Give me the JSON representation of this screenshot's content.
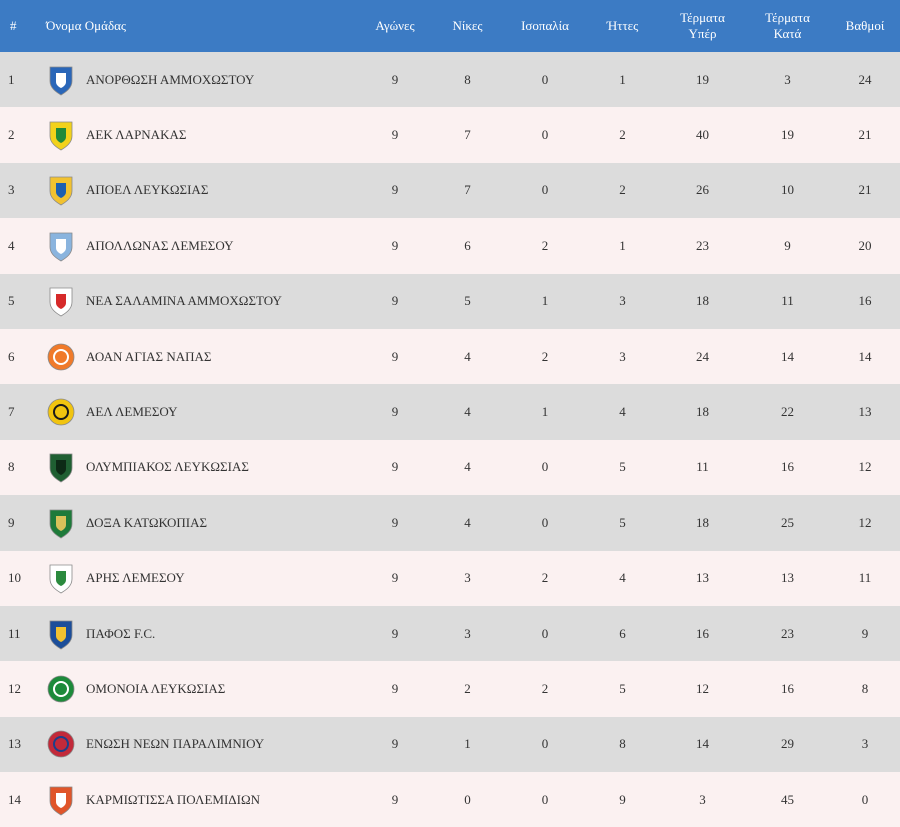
{
  "headers": {
    "num": "#",
    "team": "Όνομα Ομάδας",
    "played": "Αγώνες",
    "wins": "Νίκες",
    "draws": "Ισοπαλία",
    "losses": "Ήττες",
    "gf_line1": "Τέρματα",
    "gf_line2": "Υπέρ",
    "ga_line1": "Τέρματα",
    "ga_line2": "Κατά",
    "points": "Βαθμοί"
  },
  "rows": [
    {
      "pos": "1",
      "team": "ΑΝΟΡΘΩΣΗ ΑΜΜΟΧΩΣΤΟΥ",
      "logo": "anorthosis-crest-icon",
      "played": "9",
      "wins": "8",
      "draws": "0",
      "losses": "1",
      "gf": "19",
      "ga": "3",
      "pts": "24"
    },
    {
      "pos": "2",
      "team": "ΑΕΚ ΛΑΡΝΑΚΑΣ",
      "logo": "aek-crest-icon",
      "played": "9",
      "wins": "7",
      "draws": "0",
      "losses": "2",
      "gf": "40",
      "ga": "19",
      "pts": "21"
    },
    {
      "pos": "3",
      "team": "ΑΠΟΕΛ ΛΕΥΚΩΣΙΑΣ",
      "logo": "apoel-crest-icon",
      "played": "9",
      "wins": "7",
      "draws": "0",
      "losses": "2",
      "gf": "26",
      "ga": "10",
      "pts": "21"
    },
    {
      "pos": "4",
      "team": "ΑΠΟΛΛΩΝΑΣ ΛΕΜΕΣΟΥ",
      "logo": "apollon-crest-icon",
      "played": "9",
      "wins": "6",
      "draws": "2",
      "losses": "1",
      "gf": "23",
      "ga": "9",
      "pts": "20"
    },
    {
      "pos": "5",
      "team": "ΝΕΑ ΣΑΛΑΜΙΝΑ ΑΜΜΟΧΩΣΤΟΥ",
      "logo": "nea-salamina-crest-icon",
      "played": "9",
      "wins": "5",
      "draws": "1",
      "losses": "3",
      "gf": "18",
      "ga": "11",
      "pts": "16"
    },
    {
      "pos": "6",
      "team": "ΑΟΑΝ ΑΓΙΑΣ ΝΑΠΑΣ",
      "logo": "aoan-crest-icon",
      "played": "9",
      "wins": "4",
      "draws": "2",
      "losses": "3",
      "gf": "24",
      "ga": "14",
      "pts": "14"
    },
    {
      "pos": "7",
      "team": "ΑΕΛ ΛΕΜΕΣΟΥ",
      "logo": "ael-crest-icon",
      "played": "9",
      "wins": "4",
      "draws": "1",
      "losses": "4",
      "gf": "18",
      "ga": "22",
      "pts": "13"
    },
    {
      "pos": "8",
      "team": "ΟΛΥΜΠΙΑΚΟΣ ΛΕΥΚΩΣΙΑΣ",
      "logo": "olympiakos-crest-icon",
      "played": "9",
      "wins": "4",
      "draws": "0",
      "losses": "5",
      "gf": "11",
      "ga": "16",
      "pts": "12"
    },
    {
      "pos": "9",
      "team": "ΔΟΞΑ ΚΑΤΩΚΟΠΙΑΣ",
      "logo": "doxa-crest-icon",
      "played": "9",
      "wins": "4",
      "draws": "0",
      "losses": "5",
      "gf": "18",
      "ga": "25",
      "pts": "12"
    },
    {
      "pos": "10",
      "team": "ΑΡΗΣ ΛΕΜΕΣΟΥ",
      "logo": "aris-crest-icon",
      "played": "9",
      "wins": "3",
      "draws": "2",
      "losses": "4",
      "gf": "13",
      "ga": "13",
      "pts": "11"
    },
    {
      "pos": "11",
      "team": "ΠΑΦΟΣ F.C.",
      "logo": "pafos-crest-icon",
      "played": "9",
      "wins": "3",
      "draws": "0",
      "losses": "6",
      "gf": "16",
      "ga": "23",
      "pts": "9"
    },
    {
      "pos": "12",
      "team": "ΟΜΟΝΟΙΑ ΛΕΥΚΩΣΙΑΣ",
      "logo": "omonia-crest-icon",
      "played": "9",
      "wins": "2",
      "draws": "2",
      "losses": "5",
      "gf": "12",
      "ga": "16",
      "pts": "8"
    },
    {
      "pos": "13",
      "team": "ΕΝΩΣΗ ΝΕΩΝ ΠΑΡΑΛΙΜΝΙΟΥ",
      "logo": "enosis-crest-icon",
      "played": "9",
      "wins": "1",
      "draws": "0",
      "losses": "8",
      "gf": "14",
      "ga": "29",
      "pts": "3"
    },
    {
      "pos": "14",
      "team": "ΚΑΡΜΙΩΤΙΣΣΑ ΠΟΛΕΜΙΔΙΩΝ",
      "logo": "karmiotissa-crest-icon",
      "played": "9",
      "wins": "0",
      "draws": "0",
      "losses": "9",
      "gf": "3",
      "ga": "45",
      "pts": "0"
    }
  ],
  "logo_colors": {
    "anorthosis-crest-icon": [
      "#2a66b8",
      "#ffffff"
    ],
    "aek-crest-icon": [
      "#f2d21b",
      "#1f8a3a"
    ],
    "apoel-crest-icon": [
      "#f2c230",
      "#1d5fb0"
    ],
    "apollon-crest-icon": [
      "#8ab4de",
      "#ffffff"
    ],
    "nea-salamina-crest-icon": [
      "#ffffff",
      "#d62a2a"
    ],
    "aoan-crest-icon": [
      "#f07a2a",
      "#ffffff"
    ],
    "ael-crest-icon": [
      "#f1c40f",
      "#1a1a1a"
    ],
    "olympiakos-crest-icon": [
      "#1f5f32",
      "#0d2a16"
    ],
    "doxa-crest-icon": [
      "#1e7a3a",
      "#d9c25a"
    ],
    "aris-crest-icon": [
      "#ffffff",
      "#2b8a3e"
    ],
    "pafos-crest-icon": [
      "#1c4e9a",
      "#f2c230"
    ],
    "omonia-crest-icon": [
      "#1d8a3a",
      "#ffffff"
    ],
    "enosis-crest-icon": [
      "#c22a3a",
      "#1d3f8a"
    ],
    "karmiotissa-crest-icon": [
      "#e0552a",
      "#ffffff"
    ]
  },
  "colors": {
    "header_bg": "#3c7bc4",
    "row_odd": "#dcdcdc",
    "row_even": "#fbf1f1"
  }
}
